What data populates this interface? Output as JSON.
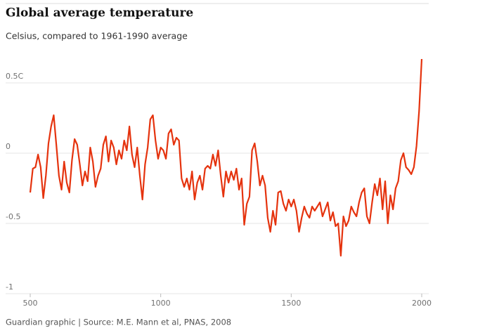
{
  "chart_data": {
    "type": "line",
    "title": "Global average temperature",
    "subtitle": "Celsius, compared to 1961-1990 average",
    "source": "Guardian graphic | Source: M.E. Mann et al, PNAS, 2008",
    "x": [
      500,
      510,
      520,
      530,
      540,
      550,
      560,
      570,
      580,
      590,
      600,
      610,
      620,
      630,
      640,
      650,
      660,
      670,
      680,
      690,
      700,
      710,
      720,
      730,
      740,
      750,
      760,
      770,
      780,
      790,
      800,
      810,
      820,
      830,
      840,
      850,
      860,
      870,
      880,
      890,
      900,
      910,
      920,
      930,
      940,
      950,
      960,
      970,
      980,
      990,
      1000,
      1010,
      1020,
      1030,
      1040,
      1050,
      1060,
      1070,
      1080,
      1090,
      1100,
      1110,
      1120,
      1130,
      1140,
      1150,
      1160,
      1170,
      1180,
      1190,
      1200,
      1210,
      1220,
      1230,
      1240,
      1250,
      1260,
      1270,
      1280,
      1290,
      1300,
      1310,
      1320,
      1330,
      1340,
      1350,
      1360,
      1370,
      1380,
      1390,
      1400,
      1410,
      1420,
      1430,
      1440,
      1450,
      1460,
      1470,
      1480,
      1490,
      1500,
      1510,
      1520,
      1530,
      1540,
      1550,
      1560,
      1570,
      1580,
      1590,
      1600,
      1610,
      1620,
      1630,
      1640,
      1650,
      1660,
      1670,
      1680,
      1690,
      1700,
      1710,
      1720,
      1730,
      1740,
      1750,
      1760,
      1770,
      1780,
      1790,
      1800,
      1810,
      1820,
      1830,
      1840,
      1850,
      1860,
      1870,
      1880,
      1890,
      1900,
      1910,
      1920,
      1930,
      1940,
      1950,
      1960,
      1970,
      1980,
      1990,
      2000
    ],
    "series": [
      {
        "color": "#e5330e",
        "values": [
          -0.28,
          -0.11,
          -0.1,
          -0.01,
          -0.1,
          -0.32,
          -0.16,
          0.07,
          0.19,
          0.27,
          0.06,
          -0.16,
          -0.26,
          -0.06,
          -0.21,
          -0.28,
          -0.05,
          0.1,
          0.06,
          -0.08,
          -0.23,
          -0.13,
          -0.2,
          0.04,
          -0.06,
          -0.24,
          -0.16,
          -0.11,
          0.06,
          0.12,
          -0.06,
          0.09,
          0.04,
          -0.08,
          0.02,
          -0.04,
          0.09,
          0.02,
          0.19,
          -0.01,
          -0.1,
          0.04,
          -0.16,
          -0.33,
          -0.08,
          0.04,
          0.24,
          0.27,
          0.09,
          -0.04,
          0.04,
          0.02,
          -0.04,
          0.14,
          0.17,
          0.06,
          0.11,
          0.09,
          -0.18,
          -0.24,
          -0.18,
          -0.26,
          -0.13,
          -0.33,
          -0.21,
          -0.16,
          -0.26,
          -0.11,
          -0.09,
          -0.11,
          -0.01,
          -0.09,
          0.02,
          -0.16,
          -0.31,
          -0.13,
          -0.21,
          -0.13,
          -0.19,
          -0.11,
          -0.26,
          -0.18,
          -0.51,
          -0.36,
          -0.31,
          0.02,
          0.07,
          -0.06,
          -0.23,
          -0.16,
          -0.23,
          -0.46,
          -0.56,
          -0.41,
          -0.51,
          -0.28,
          -0.27,
          -0.36,
          -0.41,
          -0.33,
          -0.38,
          -0.33,
          -0.41,
          -0.56,
          -0.46,
          -0.38,
          -0.43,
          -0.46,
          -0.38,
          -0.41,
          -0.38,
          -0.35,
          -0.45,
          -0.4,
          -0.35,
          -0.48,
          -0.42,
          -0.52,
          -0.5,
          -0.73,
          -0.45,
          -0.52,
          -0.48,
          -0.38,
          -0.42,
          -0.45,
          -0.35,
          -0.28,
          -0.25,
          -0.45,
          -0.5,
          -0.35,
          -0.22,
          -0.3,
          -0.18,
          -0.4,
          -0.2,
          -0.5,
          -0.3,
          -0.4,
          -0.25,
          -0.2,
          -0.05,
          0.0,
          -0.1,
          -0.12,
          -0.15,
          -0.1,
          0.05,
          0.3,
          0.67
        ]
      }
    ],
    "xlim": [
      500,
      2000
    ],
    "xticks": [
      500,
      1000,
      1500,
      2000
    ],
    "ylim": [
      -1,
      0.7
    ],
    "yticks": [
      {
        "value": 0.5,
        "label": "0.5C"
      },
      0,
      -0.5,
      -1
    ],
    "grid": true
  }
}
